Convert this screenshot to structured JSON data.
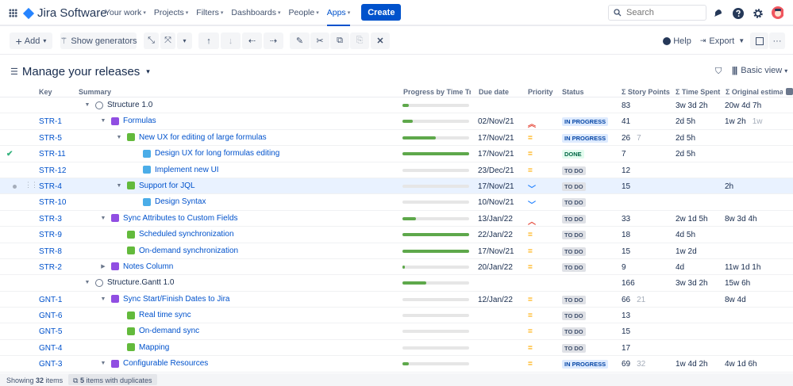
{
  "nav": {
    "product": "Jira Software",
    "items": [
      {
        "label": "Your work",
        "active": false
      },
      {
        "label": "Projects",
        "active": false
      },
      {
        "label": "Filters",
        "active": false
      },
      {
        "label": "Dashboards",
        "active": false
      },
      {
        "label": "People",
        "active": false
      },
      {
        "label": "Apps",
        "active": true
      }
    ],
    "create_label": "Create",
    "search_placeholder": "Search"
  },
  "toolbar": {
    "add_label": "Add",
    "show_generators_label": "Show generators",
    "help_label": "Help",
    "export_label": "Export"
  },
  "view": {
    "title": "Manage your releases",
    "view_mode": "Basic view"
  },
  "columns": {
    "key": "Key",
    "summary": "Summary",
    "progress": "Progress by Time Tracking",
    "due": "Due date",
    "priority": "Priority",
    "status": "Status",
    "story_points": "Σ Story Points",
    "time_spent": "Σ Time Spent",
    "original_estimate": "Σ Original estimate"
  },
  "rows": [
    {
      "key": "",
      "summary": "Structure 1.0",
      "type": "version",
      "level": 0,
      "expanded": true,
      "progress": 0.1,
      "due": "",
      "priority": "",
      "status": "",
      "sp": "83",
      "sp2": "",
      "ts": "3w 3d 2h",
      "oe": "20w 4d 7h",
      "oe2": ""
    },
    {
      "key": "STR-1",
      "summary": "Formulas",
      "type": "epic",
      "level": 1,
      "expanded": true,
      "progress": 0.15,
      "due": "02/Nov/21",
      "priority": "highest",
      "status": "IN PROGRESS",
      "sp": "41",
      "sp2": "",
      "ts": "2d 5h",
      "oe": "1w 2h",
      "oe2": "1w"
    },
    {
      "key": "STR-5",
      "summary": "New UX for editing of large formulas",
      "type": "story",
      "level": 2,
      "expanded": true,
      "progress": 0.5,
      "due": "17/Nov/21",
      "priority": "medium",
      "status": "IN PROGRESS",
      "sp": "26",
      "sp2": "7",
      "ts": "2d 5h",
      "oe": "",
      "oe2": ""
    },
    {
      "key": "STR-11",
      "summary": "Design UX for long formulas editing",
      "type": "subtask",
      "level": 3,
      "progress": 1,
      "due": "17/Nov/21",
      "priority": "medium",
      "status": "DONE",
      "sp": "7",
      "sp2": "",
      "ts": "2d 5h",
      "oe": "",
      "oe2": "",
      "checked": true
    },
    {
      "key": "STR-12",
      "summary": "Implement new UI",
      "type": "subtask",
      "level": 3,
      "progress": 0,
      "due": "23/Dec/21",
      "priority": "medium",
      "status": "TO DO",
      "sp": "12",
      "sp2": "",
      "ts": "",
      "oe": "",
      "oe2": ""
    },
    {
      "key": "STR-4",
      "summary": "Support for JQL",
      "type": "story",
      "level": 2,
      "expanded": true,
      "progress": 0,
      "due": "17/Nov/21",
      "priority": "low",
      "status": "TO DO",
      "sp": "15",
      "sp2": "",
      "ts": "",
      "oe": "2h",
      "oe2": "",
      "selected": true
    },
    {
      "key": "STR-10",
      "summary": "Design Syntax",
      "type": "subtask",
      "level": 3,
      "progress": 0,
      "due": "10/Nov/21",
      "priority": "low",
      "status": "TO DO",
      "sp": "",
      "sp2": "",
      "ts": "",
      "oe": "",
      "oe2": ""
    },
    {
      "key": "STR-3",
      "summary": "Sync Attributes to Custom Fields",
      "type": "epic",
      "level": 1,
      "expanded": true,
      "progress": 0.2,
      "due": "13/Jan/22",
      "priority": "high",
      "status": "TO DO",
      "sp": "33",
      "sp2": "",
      "ts": "2w 1d 5h",
      "oe": "8w 3d 4h",
      "oe2": ""
    },
    {
      "key": "STR-9",
      "summary": "Scheduled synchronization",
      "type": "story",
      "level": 2,
      "progress": 1,
      "due": "22/Jan/22",
      "priority": "medium",
      "status": "TO DO",
      "sp": "18",
      "sp2": "",
      "ts": "4d 5h",
      "oe": "",
      "oe2": ""
    },
    {
      "key": "STR-8",
      "summary": "On-demand synchronization",
      "type": "story",
      "level": 2,
      "progress": 1,
      "due": "17/Nov/21",
      "priority": "medium",
      "status": "TO DO",
      "sp": "15",
      "sp2": "",
      "ts": "1w 2d",
      "oe": "",
      "oe2": ""
    },
    {
      "key": "STR-2",
      "summary": "Notes Column",
      "type": "epic",
      "level": 1,
      "expanded": false,
      "progress": 0.04,
      "due": "20/Jan/22",
      "priority": "medium",
      "status": "TO DO",
      "sp": "9",
      "sp2": "",
      "ts": "4d",
      "oe": "11w 1d 1h",
      "oe2": ""
    },
    {
      "key": "",
      "summary": "Structure.Gantt 1.0",
      "type": "version",
      "level": 0,
      "expanded": true,
      "progress": 0.36,
      "due": "",
      "priority": "",
      "status": "",
      "sp": "166",
      "sp2": "",
      "ts": "3w 3d 2h",
      "oe": "15w 6h",
      "oe2": ""
    },
    {
      "key": "GNT-1",
      "summary": "Sync Start/Finish Dates to Jira",
      "type": "epic",
      "level": 1,
      "expanded": true,
      "progress": 0,
      "due": "12/Jan/22",
      "priority": "medium",
      "status": "TO DO",
      "sp": "66",
      "sp2": "21",
      "ts": "",
      "oe": "8w 4d",
      "oe2": ""
    },
    {
      "key": "GNT-6",
      "summary": "Real time sync",
      "type": "story",
      "level": 2,
      "progress": 0,
      "due": "",
      "priority": "medium",
      "status": "TO DO",
      "sp": "13",
      "sp2": "",
      "ts": "",
      "oe": "",
      "oe2": ""
    },
    {
      "key": "GNT-5",
      "summary": "On-demand sync",
      "type": "story",
      "level": 2,
      "progress": 0,
      "due": "",
      "priority": "medium",
      "status": "TO DO",
      "sp": "15",
      "sp2": "",
      "ts": "",
      "oe": "",
      "oe2": ""
    },
    {
      "key": "GNT-4",
      "summary": "Mapping",
      "type": "story",
      "level": 2,
      "progress": 0,
      "due": "",
      "priority": "medium",
      "status": "TO DO",
      "sp": "17",
      "sp2": "",
      "ts": "",
      "oe": "",
      "oe2": ""
    },
    {
      "key": "GNT-3",
      "summary": "Configurable Resources",
      "type": "epic",
      "level": 1,
      "expanded": true,
      "progress": 0.1,
      "due": "",
      "priority": "medium",
      "status": "IN PROGRESS",
      "sp": "69",
      "sp2": "32",
      "ts": "1w 4d 2h",
      "oe": "4w 1d 6h",
      "oe2": ""
    }
  ],
  "footer": {
    "showing_prefix": "Showing",
    "showing_count": "32",
    "showing_suffix": "items",
    "duplicates_count": "5",
    "duplicates_label": "items with duplicates"
  },
  "colors": {
    "brand": "#0052cc",
    "progress": "#5ea84b",
    "selected_row": "#e9f2ff"
  }
}
